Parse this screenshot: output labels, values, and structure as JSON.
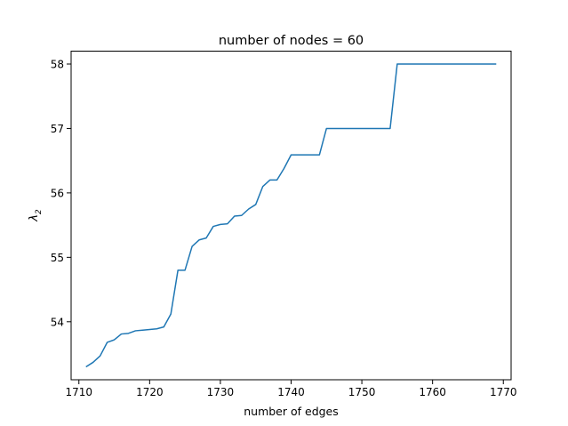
{
  "chart_data": {
    "type": "line",
    "title": "number of nodes = 60",
    "xlabel": "number of edges",
    "ylabel_base": "λ",
    "ylabel_sub": "2",
    "xlim": [
      1708.9,
      1771.1
    ],
    "ylim": [
      53.1,
      58.2
    ],
    "xticks": [
      1710,
      1720,
      1730,
      1740,
      1750,
      1760,
      1770
    ],
    "yticks": [
      54,
      55,
      56,
      57,
      58
    ],
    "grid": false,
    "line_color": "#1f77b4",
    "series": [
      {
        "x": [
          1711,
          1712,
          1713,
          1714,
          1715,
          1716,
          1717,
          1718,
          1719,
          1720,
          1721,
          1722,
          1723,
          1724,
          1725,
          1726,
          1727,
          1728,
          1729,
          1730,
          1731,
          1732,
          1733,
          1734,
          1735,
          1736,
          1737,
          1738,
          1739,
          1740,
          1741,
          1742,
          1743,
          1744,
          1745,
          1746,
          1747,
          1748,
          1749,
          1750,
          1751,
          1752,
          1753,
          1754,
          1755,
          1756,
          1757,
          1758,
          1759,
          1760,
          1761,
          1762,
          1763,
          1764,
          1765,
          1766,
          1767,
          1768,
          1769
        ],
        "values": [
          53.3,
          53.37,
          53.47,
          53.68,
          53.72,
          53.81,
          53.82,
          53.86,
          53.87,
          53.88,
          53.89,
          53.92,
          54.12,
          54.8,
          54.8,
          55.17,
          55.27,
          55.3,
          55.48,
          55.51,
          55.52,
          55.64,
          55.65,
          55.75,
          55.82,
          56.1,
          56.2,
          56.2,
          56.38,
          56.59,
          56.59,
          56.59,
          56.59,
          56.59,
          57.0,
          57.0,
          57.0,
          57.0,
          57.0,
          57.0,
          57.0,
          57.0,
          57.0,
          57.0,
          58.0,
          58.0,
          58.0,
          58.0,
          58.0,
          58.0,
          58.0,
          58.0,
          58.0,
          58.0,
          58.0,
          58.0,
          58.0,
          58.0,
          58.0
        ]
      }
    ]
  }
}
